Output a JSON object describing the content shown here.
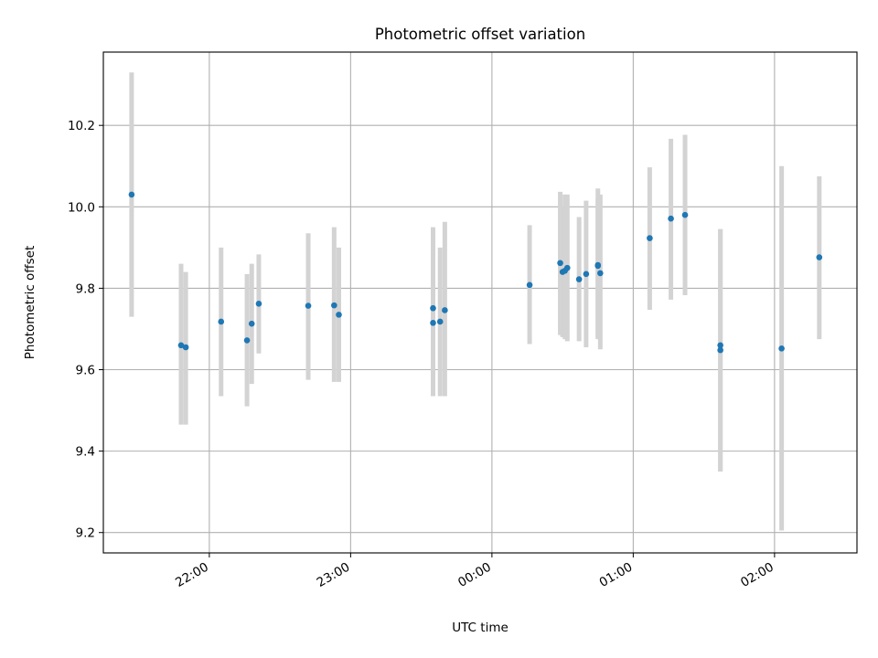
{
  "chart_data": {
    "type": "scatter",
    "title": "Photometric offset variation",
    "xlabel": "UTC time",
    "ylabel": "Photometric offset",
    "x_axis_kind": "time",
    "xlim": [
      "21:15",
      "02:35"
    ],
    "ylim": [
      9.15,
      10.38
    ],
    "x_ticks": [
      "22:00",
      "23:00",
      "00:00",
      "01:00",
      "02:00"
    ],
    "y_ticks": [
      9.2,
      9.4,
      9.6,
      9.8,
      10.0,
      10.2
    ],
    "grid": true,
    "point_color": "#1f77b4",
    "errorbar_color": "#d3d3d3",
    "series": [
      {
        "points": [
          {
            "t": "21:27",
            "y": 10.03,
            "lo": 9.73,
            "hi": 10.33
          },
          {
            "t": "21:48",
            "y": 9.66,
            "lo": 9.465,
            "hi": 9.86
          },
          {
            "t": "21:50",
            "y": 9.655,
            "lo": 9.465,
            "hi": 9.84
          },
          {
            "t": "22:05",
            "y": 9.718,
            "lo": 9.535,
            "hi": 9.9
          },
          {
            "t": "22:16",
            "y": 9.672,
            "lo": 9.51,
            "hi": 9.835
          },
          {
            "t": "22:18",
            "y": 9.713,
            "lo": 9.565,
            "hi": 9.86
          },
          {
            "t": "22:21",
            "y": 9.762,
            "lo": 9.64,
            "hi": 9.883
          },
          {
            "t": "22:42",
            "y": 9.757,
            "lo": 9.575,
            "hi": 9.935
          },
          {
            "t": "22:53",
            "y": 9.758,
            "lo": 9.57,
            "hi": 9.95
          },
          {
            "t": "22:55",
            "y": 9.735,
            "lo": 9.57,
            "hi": 9.9
          },
          {
            "t": "23:35",
            "y": 9.751,
            "lo": 9.55,
            "hi": 9.95
          },
          {
            "t": "23:35",
            "y": 9.715,
            "lo": 9.535,
            "hi": 9.893
          },
          {
            "t": "23:38",
            "y": 9.718,
            "lo": 9.535,
            "hi": 9.9
          },
          {
            "t": "23:40",
            "y": 9.746,
            "lo": 9.535,
            "hi": 9.963
          },
          {
            "t": "00:16",
            "y": 9.808,
            "lo": 9.663,
            "hi": 9.955
          },
          {
            "t": "00:29",
            "y": 9.862,
            "lo": 9.685,
            "hi": 10.037
          },
          {
            "t": "00:30",
            "y": 9.84,
            "lo": 9.68,
            "hi": 10.0
          },
          {
            "t": "00:31",
            "y": 9.843,
            "lo": 9.675,
            "hi": 10.03
          },
          {
            "t": "00:32",
            "y": 9.85,
            "lo": 9.67,
            "hi": 10.03
          },
          {
            "t": "00:37",
            "y": 9.822,
            "lo": 9.67,
            "hi": 9.975
          },
          {
            "t": "00:40",
            "y": 9.835,
            "lo": 9.655,
            "hi": 10.015
          },
          {
            "t": "00:45",
            "y": 9.855,
            "lo": 9.675,
            "hi": 10.02
          },
          {
            "t": "00:45",
            "y": 9.857,
            "lo": 9.68,
            "hi": 10.045
          },
          {
            "t": "00:46",
            "y": 9.837,
            "lo": 9.65,
            "hi": 10.03
          },
          {
            "t": "01:07",
            "y": 9.923,
            "lo": 9.747,
            "hi": 10.097
          },
          {
            "t": "01:16",
            "y": 9.971,
            "lo": 9.772,
            "hi": 10.167
          },
          {
            "t": "01:22",
            "y": 9.98,
            "lo": 9.783,
            "hi": 10.177
          },
          {
            "t": "01:37",
            "y": 9.66,
            "lo": 9.35,
            "hi": 9.945
          },
          {
            "t": "01:37",
            "y": 9.648,
            "lo": 9.35,
            "hi": 9.945
          },
          {
            "t": "02:03",
            "y": 9.652,
            "lo": 9.205,
            "hi": 10.1
          },
          {
            "t": "02:19",
            "y": 9.876,
            "lo": 9.675,
            "hi": 10.075
          }
        ]
      }
    ]
  }
}
